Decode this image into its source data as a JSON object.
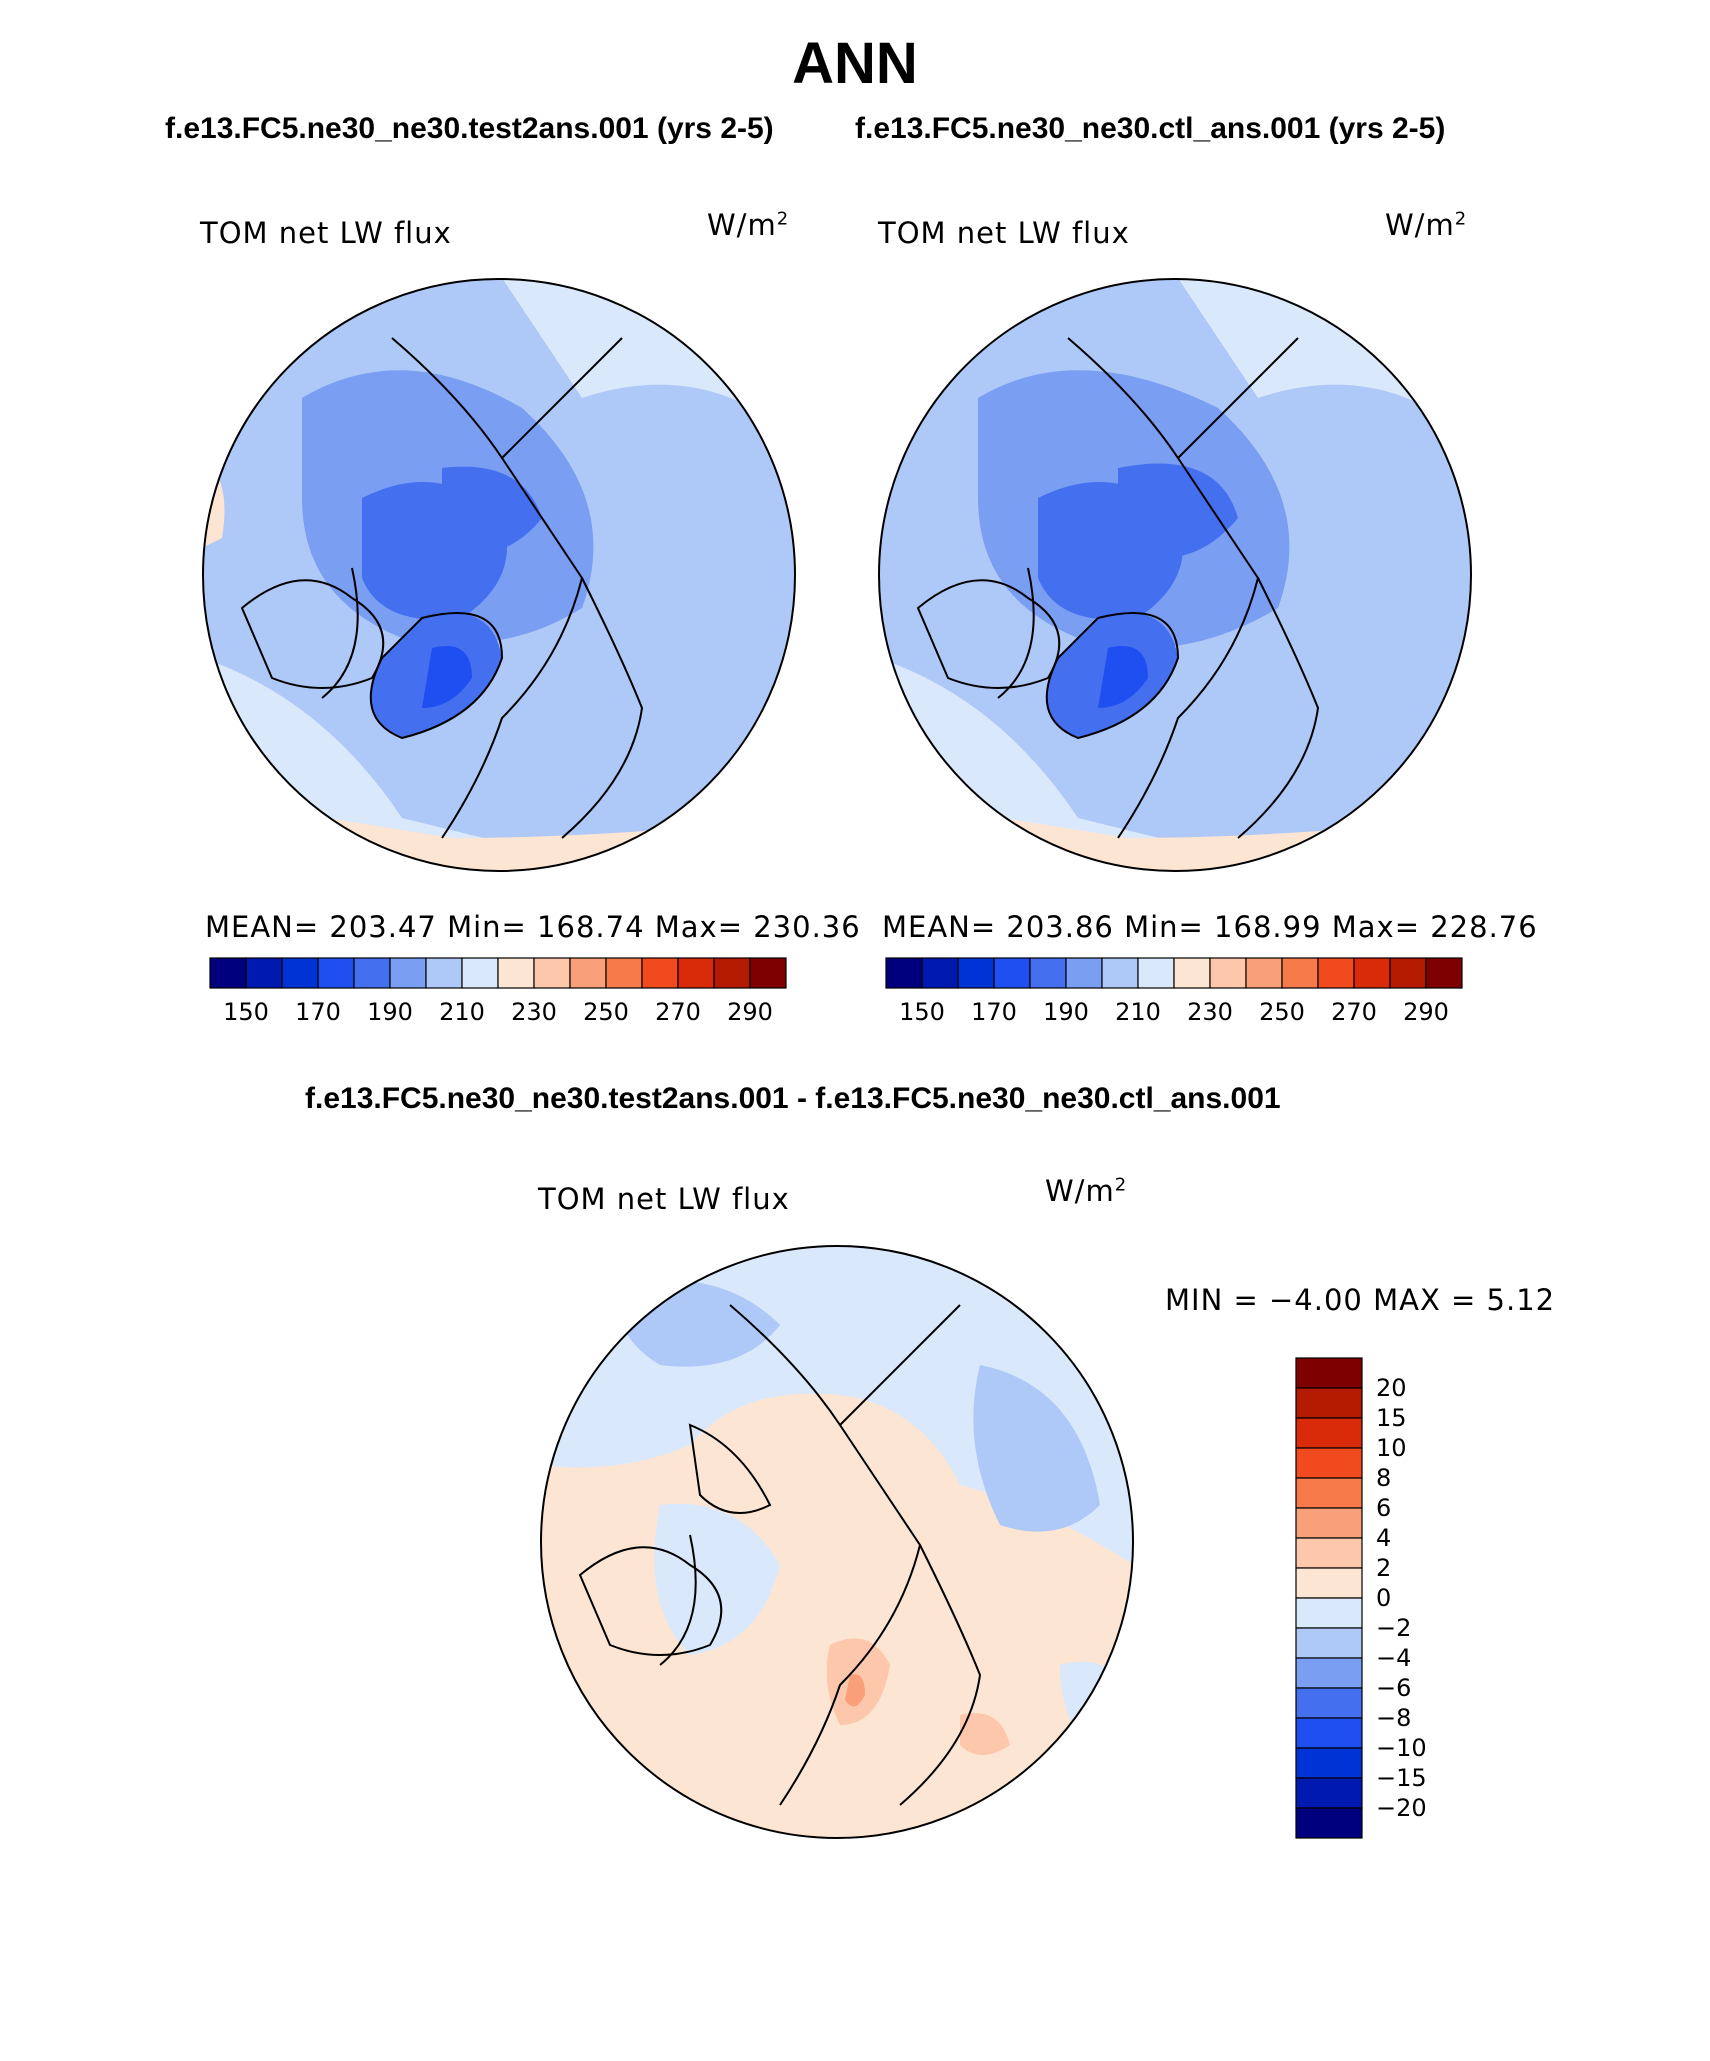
{
  "header": {
    "title": "ANN",
    "left_case": "f.e13.FC5.ne30_ne30.test2ans.001 (yrs 2-5)",
    "right_case": "f.e13.FC5.ne30_ne30.ctl_ans.001 (yrs 2-5)",
    "diff_title": "f.e13.FC5.ne30_ne30.test2ans.001 - f.e13.FC5.ne30_ne30.ctl_ans.001"
  },
  "panels": {
    "left": {
      "variable": "TOM net LW flux",
      "units": "W/m",
      "units_sup": "2",
      "stats": "MEAN= 203.47   Min= 168.74   Max= 230.36"
    },
    "right": {
      "variable": "TOM net LW flux",
      "units": "W/m",
      "units_sup": "2",
      "stats": "MEAN= 203.86   Min= 168.99   Max= 228.76"
    },
    "diff": {
      "variable": "TOM net LW flux",
      "units": "W/m",
      "units_sup": "2",
      "stats": "MIN =   −4.00 MAX =    5.12"
    }
  },
  "abs_colorbar": {
    "colors": [
      "#00007f",
      "#0019b0",
      "#0033d6",
      "#1f4ff0",
      "#4470f0",
      "#7a9ef2",
      "#aec8f7",
      "#d9e9fb",
      "#fde5d3",
      "#fcc7aa",
      "#f9a07a",
      "#f67a4a",
      "#f04a1e",
      "#d92b0a",
      "#b31a00",
      "#7f0000"
    ],
    "labels": [
      "150",
      "170",
      "190",
      "210",
      "230",
      "250",
      "270",
      "290"
    ]
  },
  "diff_colorbar": {
    "colors_top_to_bottom": [
      "#7f0000",
      "#b31a00",
      "#d92b0a",
      "#f04a1e",
      "#f67a4a",
      "#f9a07a",
      "#fcc7aa",
      "#fde5d3",
      "#d9e9fb",
      "#aec8f7",
      "#7a9ef2",
      "#4470f0",
      "#1f4ff0",
      "#0033d6",
      "#0019b0",
      "#00007f"
    ],
    "labels": [
      "20",
      "15",
      "10",
      "8",
      "6",
      "4",
      "2",
      "0",
      "−2",
      "−4",
      "−6",
      "−8",
      "−10",
      "−15",
      "−20"
    ]
  }
}
